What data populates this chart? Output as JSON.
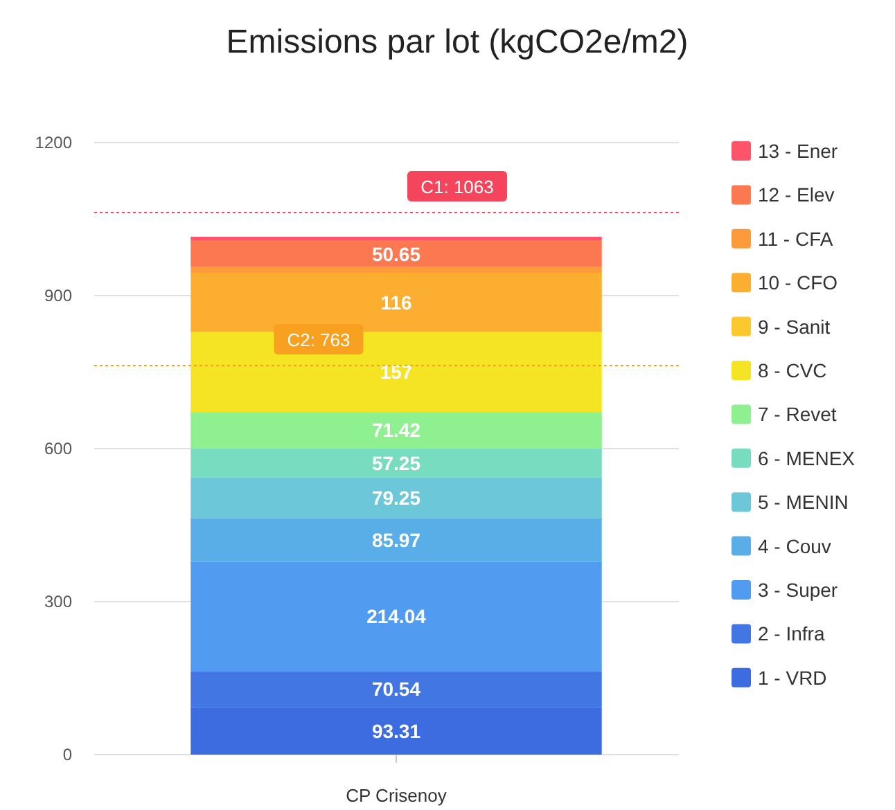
{
  "chart_data": {
    "type": "bar",
    "title": "Emissions par lot (kgCO2e/m2)",
    "categories": [
      "CP Crisenoy"
    ],
    "stacked": true,
    "ylim": [
      0,
      1200
    ],
    "yticks": [
      0,
      300,
      600,
      900,
      1200
    ],
    "grid": "y",
    "legend": "right",
    "series": [
      {
        "name": "1 - VRD",
        "color": "#3d6be0",
        "values": [
          93.31
        ],
        "value_labels": [
          "93.31"
        ]
      },
      {
        "name": "2 - Infra",
        "color": "#4276e2",
        "values": [
          70.54
        ],
        "value_labels": [
          "70.54"
        ]
      },
      {
        "name": "3 - Super",
        "color": "#519cf0",
        "values": [
          214.04
        ],
        "value_labels": [
          "214.04"
        ]
      },
      {
        "name": "4 - Couv",
        "color": "#5aaee8",
        "values": [
          85.97
        ],
        "value_labels": [
          "85.97"
        ]
      },
      {
        "name": "5 - MENIN",
        "color": "#6cc8d8",
        "values": [
          79.25
        ],
        "value_labels": [
          "79.25"
        ]
      },
      {
        "name": "6 - MENEX",
        "color": "#78dcc0",
        "values": [
          57.25
        ],
        "value_labels": [
          "57.25"
        ]
      },
      {
        "name": "7 - Revet",
        "color": "#8ef08e",
        "values": [
          71.42
        ],
        "value_labels": [
          "71.42"
        ]
      },
      {
        "name": "8 - CVC",
        "color": "#f4e424",
        "values": [
          157
        ],
        "value_labels": [
          "157"
        ]
      },
      {
        "name": "9 - Sanit",
        "color": "#fcc830",
        "values": [
          0
        ],
        "value_labels": [
          null
        ]
      },
      {
        "name": "10 - CFO",
        "color": "#fcae30",
        "values": [
          116
        ],
        "value_labels": [
          "116"
        ]
      },
      {
        "name": "11 - CFA",
        "color": "#fc9a3c",
        "values": [
          12
        ],
        "value_labels": [
          null
        ]
      },
      {
        "name": "12 - Elev",
        "color": "#fc7850",
        "values": [
          50.65
        ],
        "value_labels": [
          "50.65"
        ]
      },
      {
        "name": "13 - Ener",
        "color": "#fc5468",
        "values": [
          8
        ],
        "value_labels": [
          null
        ]
      }
    ],
    "ref_lines": [
      {
        "axis": "y",
        "value": 1063,
        "label": "C1: 1063",
        "color": "#f5455c",
        "line_style": "dotted"
      },
      {
        "axis": "y",
        "value": 763,
        "label": "C2: 763",
        "color": "#f8a020",
        "line_style": "dotted"
      }
    ]
  }
}
